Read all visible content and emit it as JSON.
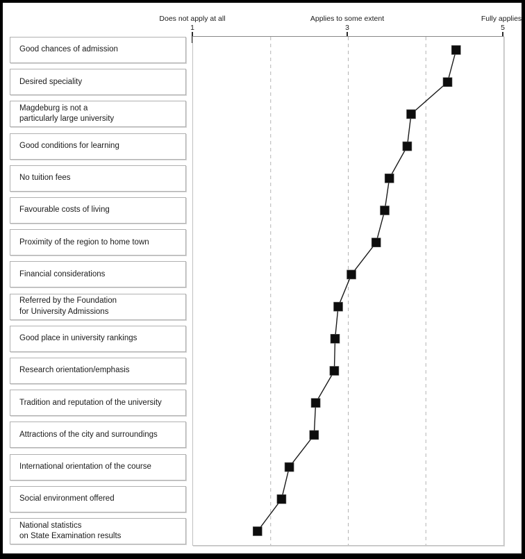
{
  "chart_data": {
    "type": "scatter",
    "subtype": "horizontal-dot-plot-with-connecting-line",
    "title": "",
    "xlabel": "",
    "ylabel": "",
    "xlim": [
      1,
      5
    ],
    "grid": "dashed vertical gridlines at 2, 3, 4",
    "gridlines": [
      2,
      3,
      4
    ],
    "axis_ticks": [
      {
        "value": 1,
        "label": "1",
        "caption": "Does not apply at all"
      },
      {
        "value": 3,
        "label": "3",
        "caption": "Applies to some extent"
      },
      {
        "value": 5,
        "label": "5",
        "caption": "Fully applies"
      }
    ],
    "marker": "filled-square",
    "categories": [
      "Good chances of admission",
      "Desired speciality",
      "Magdeburg is not a\nparticularly large university",
      "Good conditions for learning",
      "No tuition fees",
      "Favourable costs of living",
      "Proximity of the region to home town",
      "Financial considerations",
      "Referred by the Foundation\nfor University Admissions",
      "Good place in university rankings",
      "Research orientation/emphasis",
      "Tradition and reputation of the university",
      "Attractions of the city and surroundings",
      "International orientation of the course",
      "Social environment offered",
      "National statistics\non State Examination results"
    ],
    "values": [
      4.39,
      4.28,
      3.81,
      3.76,
      3.53,
      3.47,
      3.36,
      3.04,
      2.87,
      2.83,
      2.82,
      2.58,
      2.56,
      2.24,
      2.14,
      1.83
    ],
    "colors": {
      "marker": "#0d0d0d",
      "line": "#1a1a1a",
      "grid": "#b3b3b3",
      "box_border": "#b0b0b0",
      "plot_border": "#c0c0c0",
      "axis_line": "#888888",
      "frame": "#000000",
      "text": "#1a1a1a"
    }
  }
}
